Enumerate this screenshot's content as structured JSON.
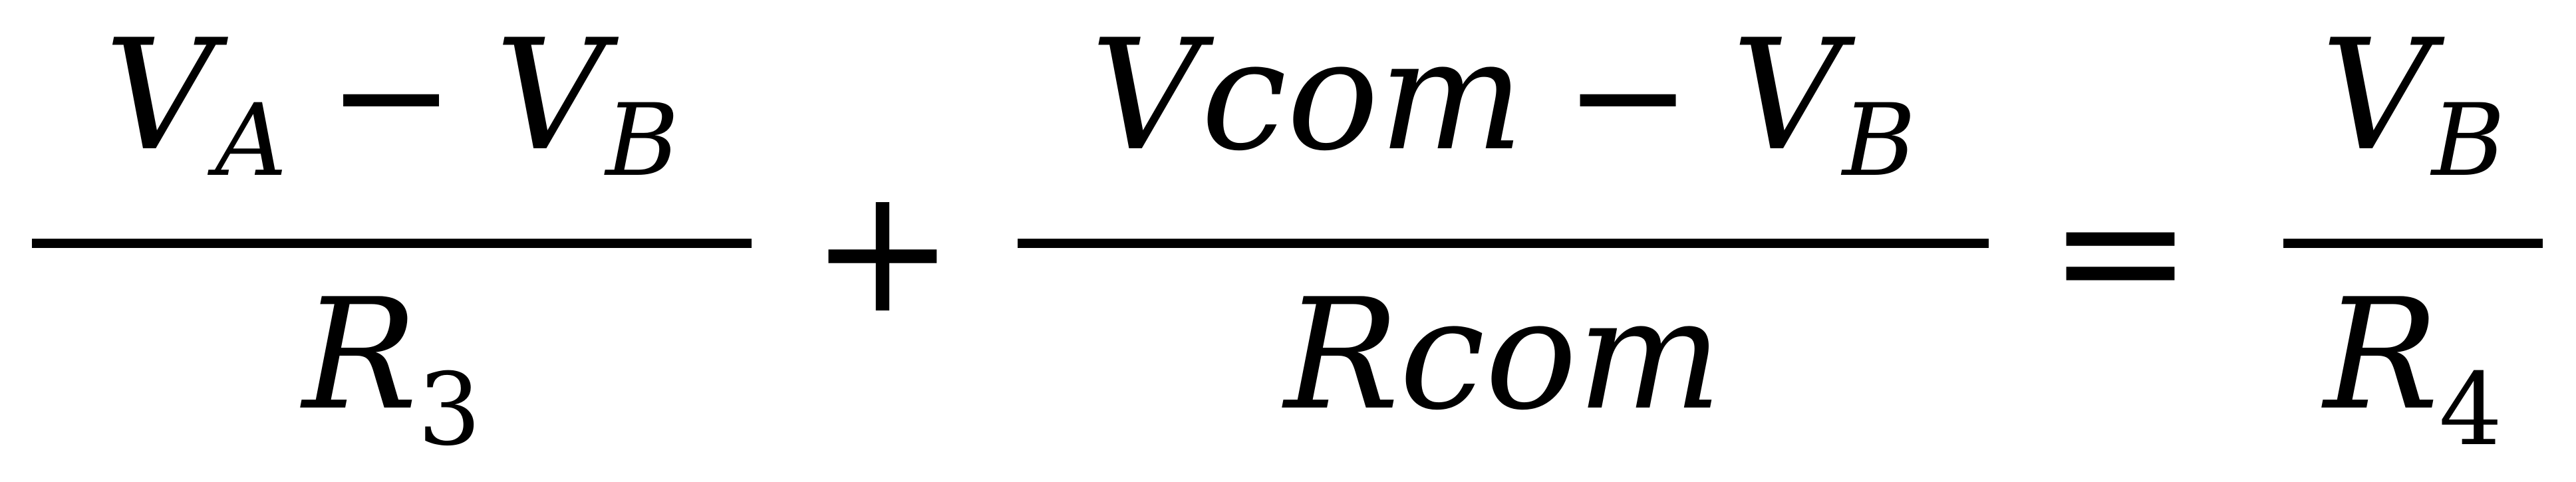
{
  "equation": {
    "term1": {
      "numerator": {
        "left_var": "V",
        "left_sub": "A",
        "minus": "−",
        "right_var": "V",
        "right_sub": "B"
      },
      "denominator": {
        "var": "R",
        "sub": "3"
      }
    },
    "plus": "+",
    "term2": {
      "numerator": {
        "left_var": "Vcom",
        "minus": "−",
        "right_var": "V",
        "right_sub": "B"
      },
      "denominator": {
        "var": "Rcom"
      }
    },
    "equals": "=",
    "term3": {
      "numerator": {
        "var": "V",
        "sub": "B"
      },
      "denominator": {
        "var": "R",
        "sub": "4"
      }
    }
  }
}
